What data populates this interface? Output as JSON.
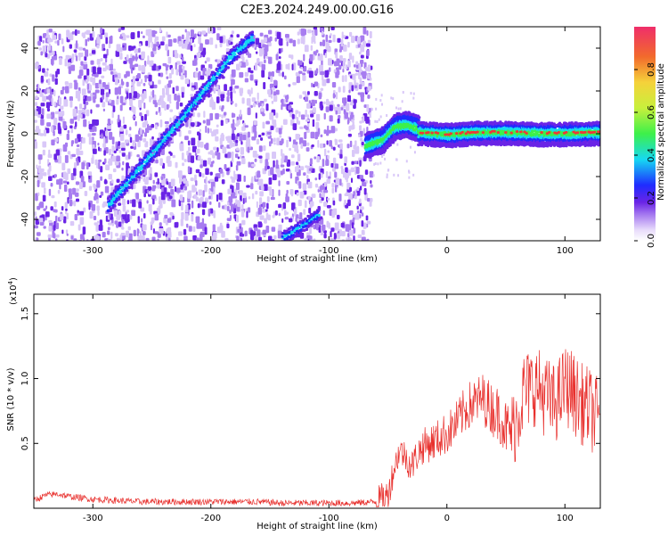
{
  "page": {
    "title": "C2E3.2024.249.00.00.G16"
  },
  "colors": {
    "noise_light": "#d9c8f8",
    "noise_mid": "#a77cf0",
    "noise_dark": "#6a24e6",
    "signal_blue": "#1f2cff",
    "signal_cyan": "#16d9f2",
    "signal_green": "#3df04a",
    "signal_red": "#ef3737",
    "snr_line": "#e8302d"
  },
  "chart_data": [
    {
      "type": "heatmap",
      "title": "C2E3.2024.249.00.00.G16",
      "xlabel": "Height of straight line (km)",
      "ylabel": "Frequency (Hz)",
      "xlim": [
        -350,
        130
      ],
      "ylim": [
        -50,
        50
      ],
      "xticks": [
        -300,
        -200,
        -100,
        0,
        100
      ],
      "yticks": [
        -40,
        -20,
        0,
        20,
        40
      ],
      "colorbar": {
        "label": "Normalized spectral amplitude",
        "range": [
          0,
          1
        ],
        "ticks": [
          "0.0",
          "0.2",
          "0.4",
          "0.6",
          "0.8"
        ]
      },
      "noise_region_x": [
        -350,
        -65
      ],
      "features": [
        {
          "name": "diagonal-upper",
          "x": [
            -288,
            -265,
            -245,
            -225,
            -205,
            -185,
            -165
          ],
          "y": [
            -33,
            -18,
            -5,
            8,
            22,
            36,
            46
          ]
        },
        {
          "name": "diagonal-lower",
          "x": [
            -140,
            -125,
            -110
          ],
          "y": [
            -48,
            -43,
            -37
          ]
        },
        {
          "name": "transition",
          "x": [
            -70,
            -55,
            -45,
            -35,
            -25
          ],
          "y": [
            -5,
            -2,
            4,
            5,
            3
          ]
        },
        {
          "name": "zero-band",
          "x": [
            -25,
            0,
            25,
            50,
            75,
            100,
            130
          ],
          "y": [
            1,
            0,
            1,
            1,
            0.5,
            0.5,
            1
          ]
        }
      ]
    },
    {
      "type": "line",
      "xlabel": "Height of straight line (km)",
      "ylabel": "SNR (10 * v/v)",
      "scale_label": "(x10",
      "scale_exponent": "4",
      "unit_scale": 10000,
      "xlim": [
        -350,
        130
      ],
      "ylim": [
        0,
        1.65
      ],
      "xticks": [
        -300,
        -200,
        -100,
        0,
        100
      ],
      "yticks": [
        0.5,
        1.0,
        1.5
      ],
      "ytick_labels": [
        "0.5",
        "1.0",
        "1.5"
      ],
      "series": [
        {
          "x": [
            -350,
            -340,
            -330,
            -320,
            -300,
            -280,
            -260,
            -240,
            -220,
            -200,
            -180,
            -160,
            -140,
            -120,
            -100,
            -80,
            -60,
            -50,
            -45,
            -40,
            -35,
            -30,
            -25,
            -20,
            -15,
            -10,
            -5,
            0,
            5,
            10,
            15,
            20,
            25,
            30,
            35,
            40,
            45,
            50,
            55,
            60,
            65,
            70,
            75,
            80,
            85,
            90,
            95,
            100,
            105,
            110,
            115,
            120,
            125,
            130
          ],
          "y": [
            0.06,
            0.1,
            0.11,
            0.09,
            0.07,
            0.06,
            0.05,
            0.05,
            0.05,
            0.05,
            0.05,
            0.05,
            0.04,
            0.04,
            0.04,
            0.04,
            0.05,
            0.1,
            0.3,
            0.45,
            0.4,
            0.32,
            0.42,
            0.48,
            0.5,
            0.52,
            0.55,
            0.58,
            0.62,
            0.68,
            0.75,
            0.8,
            0.82,
            0.85,
            0.8,
            0.75,
            0.72,
            0.62,
            0.58,
            0.72,
            0.9,
            0.92,
            0.95,
            0.9,
            0.85,
            0.8,
            0.85,
            0.95,
            0.92,
            0.85,
            0.8,
            0.78,
            0.72,
            0.68
          ]
        }
      ]
    }
  ]
}
